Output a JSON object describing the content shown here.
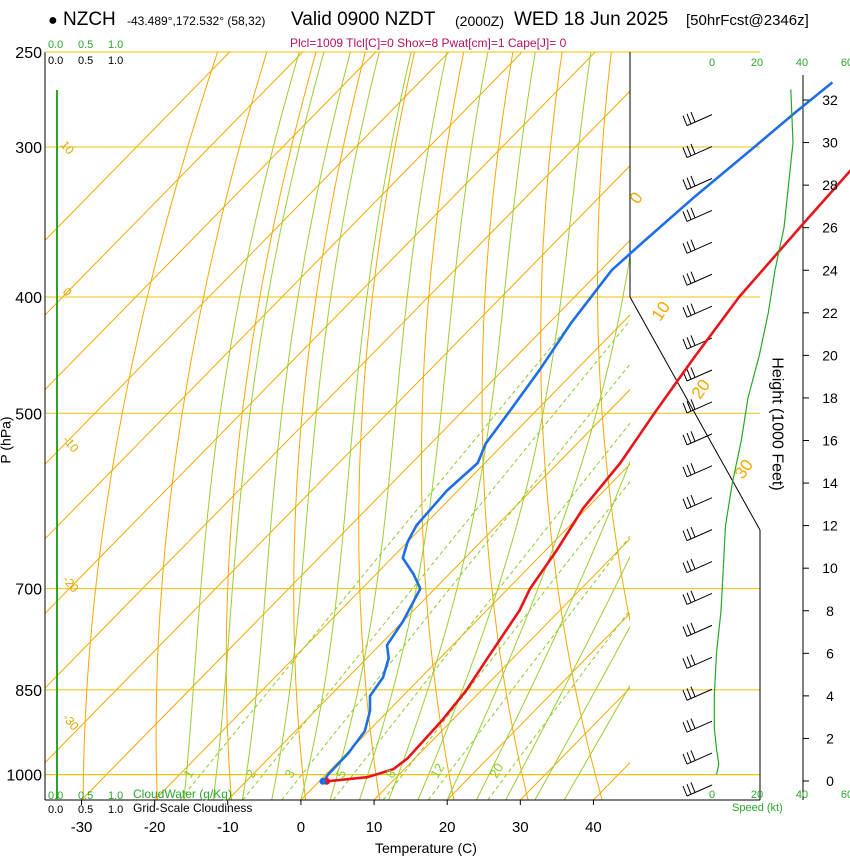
{
  "header": {
    "station": "NZCH",
    "coords": "-43.489°,172.532° (58,32)",
    "valid": "Valid 0900 NZDT",
    "utc": "(2000Z)",
    "date": "WED 18 Jun 2025",
    "forecast": "[50hrFcst@2346z]",
    "params": "Plcl=1009 Tlcl[C]=0 Shox=8 Pwat[cm]=1 Cape[J]= 0"
  },
  "axes": {
    "ylabel": "P (hPa)",
    "xlabel": "Temperature (C)",
    "height_label": "Height (1000 Feet)",
    "speed_label": "Speed (kt)",
    "cloudwater_label": "CloudWater (g/Kg)",
    "cloudiness_label": "Grid-Scale Cloudiness"
  },
  "colors": {
    "temperature": "#e8141a",
    "dewpoint": "#1e6ee6",
    "dry_adiabat": "#f5a800",
    "moist_adiabat": "#9acd32",
    "mixing_ratio": "#8ccc28",
    "wind_speed": "#2aa52a",
    "isobar": "#f0c000"
  },
  "chart_data": {
    "type": "line",
    "title": "Valid 0900 NZDT (2000Z) WED 18 Jun 2025",
    "xlabel": "Temperature (C)",
    "ylabel": "P (hPa)",
    "xlim": [
      -35,
      45
    ],
    "ylim": [
      1050,
      250
    ],
    "y_scale": "log",
    "x_ticks": [
      -30,
      -20,
      -10,
      0,
      10,
      20,
      30,
      40
    ],
    "p_ticks": [
      1000,
      850,
      700,
      500,
      400,
      300,
      250
    ],
    "height_ticks_kft": [
      0,
      2,
      4,
      6,
      8,
      10,
      12,
      14,
      16,
      18,
      20,
      22,
      24,
      26,
      28,
      30,
      32
    ],
    "speed_ticks_kt": [
      0,
      20,
      40,
      60
    ],
    "cloudwater_ticks": [
      "0.0",
      "0.5",
      "1.0"
    ],
    "cloudiness_ticks": [
      "0.0",
      "0.5",
      "1.0"
    ],
    "dry_adiabat_labels": [
      "0",
      "10",
      "20",
      "30"
    ],
    "isotherm_labels": [
      "10",
      "0",
      "-10",
      "-20",
      "-30"
    ],
    "mixing_ratio_labels": [
      "1",
      "2",
      "3",
      "5",
      "8",
      "12",
      "20"
    ],
    "series": [
      {
        "name": "Temperature",
        "points": [
          [
            1.0,
            1013
          ],
          [
            6.0,
            1005
          ],
          [
            8.5,
            990
          ],
          [
            9.0,
            970
          ],
          [
            8.6,
            900
          ],
          [
            7.9,
            850
          ],
          [
            6.5,
            800
          ],
          [
            4.5,
            730
          ],
          [
            3.0,
            700
          ],
          [
            1.5,
            650
          ],
          [
            -0.5,
            600
          ],
          [
            -1.5,
            550
          ],
          [
            -3.5,
            500
          ],
          [
            -5.5,
            450
          ],
          [
            -7.5,
            400
          ],
          [
            -8.5,
            350
          ],
          [
            -9.5,
            300
          ],
          [
            -10.0,
            278
          ],
          [
            -10.2,
            265
          ]
        ]
      },
      {
        "name": "Dewpoint",
        "points": [
          [
            0.5,
            1013
          ],
          [
            0.5,
            1008
          ],
          [
            0.3,
            1000
          ],
          [
            0.2,
            960
          ],
          [
            -0.5,
            920
          ],
          [
            -2.5,
            885
          ],
          [
            -4.5,
            860
          ],
          [
            -5.2,
            830
          ],
          [
            -7.0,
            800
          ],
          [
            -9.0,
            780
          ],
          [
            -10.0,
            745
          ],
          [
            -12.0,
            700
          ],
          [
            -15.0,
            680
          ],
          [
            -18.5,
            660
          ],
          [
            -20.0,
            640
          ],
          [
            -21.0,
            620
          ],
          [
            -21.5,
            580
          ],
          [
            -21.0,
            550
          ],
          [
            -22.5,
            530
          ],
          [
            -23.5,
            500
          ],
          [
            -25.0,
            460
          ],
          [
            -27.0,
            420
          ],
          [
            -28.5,
            380
          ],
          [
            -28.0,
            360
          ],
          [
            -27.0,
            330
          ],
          [
            -25.5,
            300
          ],
          [
            -24.5,
            280
          ],
          [
            -23.5,
            265
          ]
        ]
      },
      {
        "name": "Wind speed (kt) vs height (1000 ft)",
        "points": [
          [
            2,
            0.3
          ],
          [
            3,
            0.8
          ],
          [
            2,
            1.5
          ],
          [
            1,
            2.5
          ],
          [
            1,
            4
          ],
          [
            2,
            6
          ],
          [
            4,
            8
          ],
          [
            5,
            10
          ],
          [
            6,
            12
          ],
          [
            9,
            14
          ],
          [
            13,
            16
          ],
          [
            16,
            18
          ],
          [
            21,
            20
          ],
          [
            25,
            22
          ],
          [
            28,
            24
          ],
          [
            32,
            26
          ],
          [
            34,
            28
          ],
          [
            36,
            30
          ],
          [
            35,
            32.5
          ]
        ]
      }
    ]
  }
}
